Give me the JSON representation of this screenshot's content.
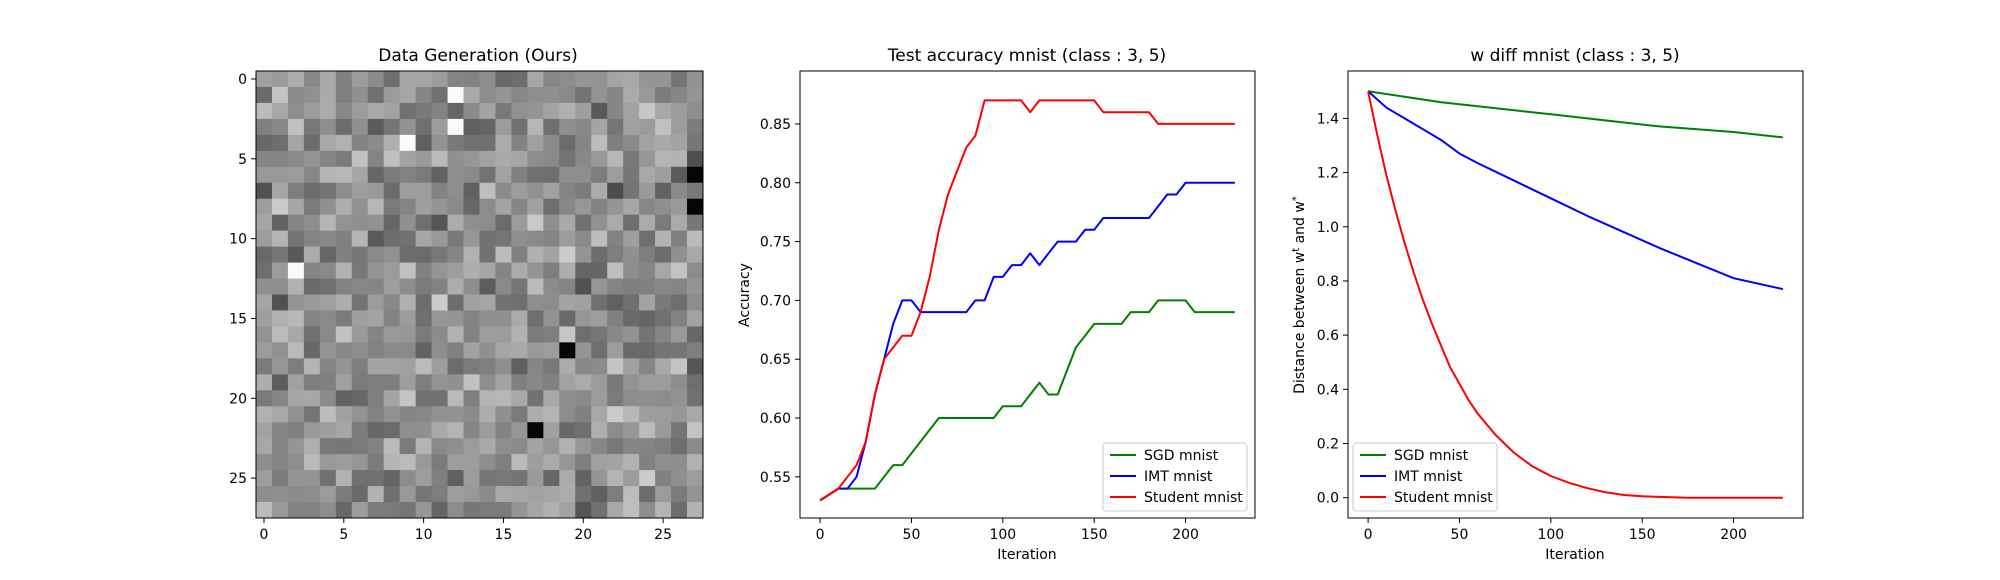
{
  "chart_data": [
    {
      "type": "heatmap",
      "title": "Data Generation (Ours)",
      "rows": 28,
      "cols": 28,
      "xticks": [
        "0",
        "5",
        "10",
        "15",
        "20",
        "25"
      ],
      "yticks": [
        "0",
        "5",
        "10",
        "15",
        "20",
        "25"
      ],
      "colormap": "gray",
      "notable_cells": [
        {
          "row": 4,
          "col": 9,
          "value": "white"
        },
        {
          "row": 3,
          "col": 12,
          "value": "white"
        },
        {
          "row": 1,
          "col": 12,
          "value": "white"
        },
        {
          "row": 12,
          "col": 2,
          "value": "white"
        },
        {
          "row": 6,
          "col": 27,
          "value": "black"
        },
        {
          "row": 17,
          "col": 19,
          "value": "black"
        },
        {
          "row": 22,
          "col": 17,
          "value": "black"
        },
        {
          "row": 8,
          "col": 27,
          "value": "black"
        }
      ]
    },
    {
      "type": "line",
      "title": "Test accuracy mnist (class : 3, 5)",
      "xlabel": "Iteration",
      "ylabel": "Accuracy",
      "xlim": [
        -11,
        238
      ],
      "ylim": [
        0.515,
        0.895
      ],
      "xticks": [
        0,
        50,
        100,
        150,
        200
      ],
      "xtick_labels": [
        "0",
        "50",
        "100",
        "150",
        "200"
      ],
      "yticks": [
        0.55,
        0.6,
        0.65,
        0.7,
        0.75,
        0.8,
        0.85
      ],
      "ytick_labels": [
        "0.55",
        "0.60",
        "0.65",
        "0.70",
        "0.75",
        "0.80",
        "0.85"
      ],
      "legend": "lower-right",
      "series": [
        {
          "name": "SGD mnist",
          "color": "#008000",
          "x": [
            0,
            10,
            20,
            30,
            35,
            40,
            45,
            50,
            55,
            60,
            65,
            70,
            75,
            80,
            85,
            90,
            95,
            100,
            105,
            110,
            115,
            120,
            125,
            130,
            135,
            140,
            145,
            150,
            155,
            160,
            165,
            170,
            175,
            180,
            185,
            190,
            195,
            200,
            205,
            210,
            215,
            220,
            227
          ],
          "y": [
            0.53,
            0.54,
            0.54,
            0.54,
            0.55,
            0.56,
            0.56,
            0.57,
            0.58,
            0.59,
            0.6,
            0.6,
            0.6,
            0.6,
            0.6,
            0.6,
            0.6,
            0.61,
            0.61,
            0.61,
            0.62,
            0.63,
            0.62,
            0.62,
            0.64,
            0.66,
            0.67,
            0.68,
            0.68,
            0.68,
            0.68,
            0.69,
            0.69,
            0.69,
            0.7,
            0.7,
            0.7,
            0.7,
            0.69,
            0.69,
            0.69,
            0.69,
            0.69
          ]
        },
        {
          "name": "IMT mnist",
          "color": "#0000ff",
          "x": [
            0,
            10,
            15,
            20,
            25,
            30,
            35,
            40,
            45,
            50,
            55,
            60,
            65,
            70,
            75,
            80,
            85,
            90,
            95,
            100,
            105,
            110,
            115,
            120,
            125,
            130,
            135,
            140,
            145,
            150,
            155,
            160,
            165,
            170,
            175,
            180,
            185,
            190,
            195,
            200,
            205,
            210,
            215,
            220,
            227
          ],
          "y": [
            0.53,
            0.54,
            0.54,
            0.55,
            0.58,
            0.62,
            0.65,
            0.68,
            0.7,
            0.7,
            0.69,
            0.69,
            0.69,
            0.69,
            0.69,
            0.69,
            0.7,
            0.7,
            0.72,
            0.72,
            0.73,
            0.73,
            0.74,
            0.73,
            0.74,
            0.75,
            0.75,
            0.75,
            0.76,
            0.76,
            0.77,
            0.77,
            0.77,
            0.77,
            0.77,
            0.77,
            0.78,
            0.79,
            0.79,
            0.8,
            0.8,
            0.8,
            0.8,
            0.8,
            0.8
          ]
        },
        {
          "name": "Student mnist",
          "color": "#ff0000",
          "x": [
            0,
            10,
            15,
            20,
            25,
            30,
            35,
            40,
            45,
            50,
            55,
            60,
            65,
            70,
            75,
            80,
            85,
            90,
            95,
            100,
            105,
            110,
            115,
            120,
            125,
            130,
            135,
            140,
            145,
            150,
            155,
            160,
            165,
            170,
            175,
            180,
            185,
            190,
            195,
            200,
            205,
            210,
            215,
            220,
            227
          ],
          "y": [
            0.53,
            0.54,
            0.55,
            0.56,
            0.58,
            0.62,
            0.65,
            0.66,
            0.67,
            0.67,
            0.69,
            0.72,
            0.76,
            0.79,
            0.81,
            0.83,
            0.84,
            0.87,
            0.87,
            0.87,
            0.87,
            0.87,
            0.86,
            0.87,
            0.87,
            0.87,
            0.87,
            0.87,
            0.87,
            0.87,
            0.86,
            0.86,
            0.86,
            0.86,
            0.86,
            0.86,
            0.85,
            0.85,
            0.85,
            0.85,
            0.85,
            0.85,
            0.85,
            0.85,
            0.85
          ]
        }
      ]
    },
    {
      "type": "line",
      "title": "w diff mnist (class : 3, 5)",
      "xlabel": "Iteration",
      "ylabel": "Distance between w^t and w^*",
      "xlim": [
        -11,
        238
      ],
      "ylim": [
        -0.075,
        1.575
      ],
      "xticks": [
        0,
        50,
        100,
        150,
        200
      ],
      "xtick_labels": [
        "0",
        "50",
        "100",
        "150",
        "200"
      ],
      "yticks": [
        0.0,
        0.2,
        0.4,
        0.6,
        0.8,
        1.0,
        1.2,
        1.4
      ],
      "ytick_labels": [
        "0.0",
        "0.2",
        "0.4",
        "0.6",
        "0.8",
        "1.0",
        "1.2",
        "1.4"
      ],
      "legend": "lower-left",
      "series": [
        {
          "name": "SGD mnist",
          "color": "#008000",
          "x": [
            0,
            20,
            40,
            60,
            80,
            100,
            120,
            140,
            160,
            180,
            200,
            227
          ],
          "y": [
            1.5,
            1.48,
            1.46,
            1.445,
            1.43,
            1.415,
            1.4,
            1.385,
            1.37,
            1.36,
            1.35,
            1.33
          ]
        },
        {
          "name": "IMT mnist",
          "color": "#0000ff",
          "x": [
            0,
            10,
            20,
            30,
            40,
            50,
            60,
            80,
            100,
            120,
            140,
            160,
            180,
            200,
            227
          ],
          "y": [
            1.5,
            1.44,
            1.4,
            1.36,
            1.32,
            1.27,
            1.235,
            1.17,
            1.105,
            1.04,
            0.98,
            0.92,
            0.865,
            0.81,
            0.77
          ]
        },
        {
          "name": "Student mnist",
          "color": "#ff0000",
          "x": [
            0,
            5,
            10,
            15,
            20,
            25,
            30,
            35,
            40,
            45,
            50,
            55,
            60,
            70,
            80,
            90,
            100,
            110,
            120,
            130,
            140,
            150,
            175,
            200,
            227
          ],
          "y": [
            1.5,
            1.34,
            1.19,
            1.06,
            0.94,
            0.83,
            0.73,
            0.64,
            0.56,
            0.48,
            0.42,
            0.36,
            0.31,
            0.23,
            0.165,
            0.115,
            0.08,
            0.055,
            0.035,
            0.02,
            0.01,
            0.005,
            0.0,
            0.0,
            0.0
          ]
        }
      ]
    }
  ]
}
